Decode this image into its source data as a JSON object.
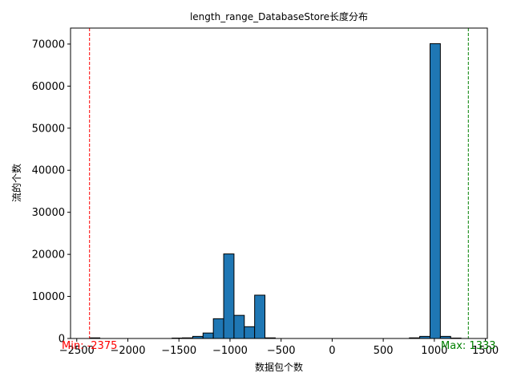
{
  "chart_data": {
    "type": "bar",
    "title": "length_range_DatabaseStore长度分布",
    "xlabel": "数据包个数",
    "ylabel": "流的个数",
    "xlim": [
      -2561,
      1519
    ],
    "ylim": [
      0,
      73800
    ],
    "xticks": [
      -2500,
      -2000,
      -1500,
      -1000,
      -500,
      0,
      500,
      1000,
      1500
    ],
    "yticks": [
      0,
      10000,
      20000,
      30000,
      40000,
      50000,
      60000,
      70000
    ],
    "bin_width": 101,
    "bar_color": "#1f77b4",
    "bar_edge_color": "#000000",
    "grid": false,
    "bins": [
      {
        "x0": -2375,
        "x1": -2274,
        "value": 150
      },
      {
        "x0": -2274,
        "x1": -2173,
        "value": 0
      },
      {
        "x0": -2173,
        "x1": -2072,
        "value": 0
      },
      {
        "x0": -2072,
        "x1": -1971,
        "value": 0
      },
      {
        "x0": -1971,
        "x1": -1870,
        "value": 0
      },
      {
        "x0": -1870,
        "x1": -1769,
        "value": 0
      },
      {
        "x0": -1769,
        "x1": -1668,
        "value": 0
      },
      {
        "x0": -1668,
        "x1": -1567,
        "value": 0
      },
      {
        "x0": -1567,
        "x1": -1466,
        "value": 100
      },
      {
        "x0": -1466,
        "x1": -1365,
        "value": 150
      },
      {
        "x0": -1365,
        "x1": -1264,
        "value": 500
      },
      {
        "x0": -1264,
        "x1": -1163,
        "value": 1300
      },
      {
        "x0": -1163,
        "x1": -1062,
        "value": 4700
      },
      {
        "x0": -1062,
        "x1": -961,
        "value": 20100
      },
      {
        "x0": -961,
        "x1": -860,
        "value": 5500
      },
      {
        "x0": -860,
        "x1": -759,
        "value": 2800
      },
      {
        "x0": -759,
        "x1": -658,
        "value": 10300
      },
      {
        "x0": -658,
        "x1": -557,
        "value": 150
      },
      {
        "x0": -557,
        "x1": -456,
        "value": 0
      },
      {
        "x0": -456,
        "x1": -355,
        "value": 0
      },
      {
        "x0": -355,
        "x1": -254,
        "value": 0
      },
      {
        "x0": -254,
        "x1": -153,
        "value": 0
      },
      {
        "x0": -153,
        "x1": -52,
        "value": 0
      },
      {
        "x0": -52,
        "x1": 49,
        "value": 0
      },
      {
        "x0": 49,
        "x1": 150,
        "value": 0
      },
      {
        "x0": 150,
        "x1": 251,
        "value": 0
      },
      {
        "x0": 251,
        "x1": 352,
        "value": 0
      },
      {
        "x0": 352,
        "x1": 453,
        "value": 0
      },
      {
        "x0": 453,
        "x1": 554,
        "value": 0
      },
      {
        "x0": 554,
        "x1": 655,
        "value": 0
      },
      {
        "x0": 655,
        "x1": 756,
        "value": 0
      },
      {
        "x0": 756,
        "x1": 857,
        "value": 150
      },
      {
        "x0": 857,
        "x1": 958,
        "value": 500
      },
      {
        "x0": 958,
        "x1": 1059,
        "value": 70100
      },
      {
        "x0": 1059,
        "x1": 1160,
        "value": 500
      },
      {
        "x0": 1160,
        "x1": 1261,
        "value": 100
      },
      {
        "x0": 1261,
        "x1": 1333,
        "value": 0
      }
    ],
    "annotations": [
      {
        "type": "vline",
        "x": -2375,
        "color": "#ff0000",
        "label": "Min: -2375"
      },
      {
        "type": "vline",
        "x": 1333,
        "color": "#008000",
        "label": "Max: 1333"
      }
    ]
  }
}
